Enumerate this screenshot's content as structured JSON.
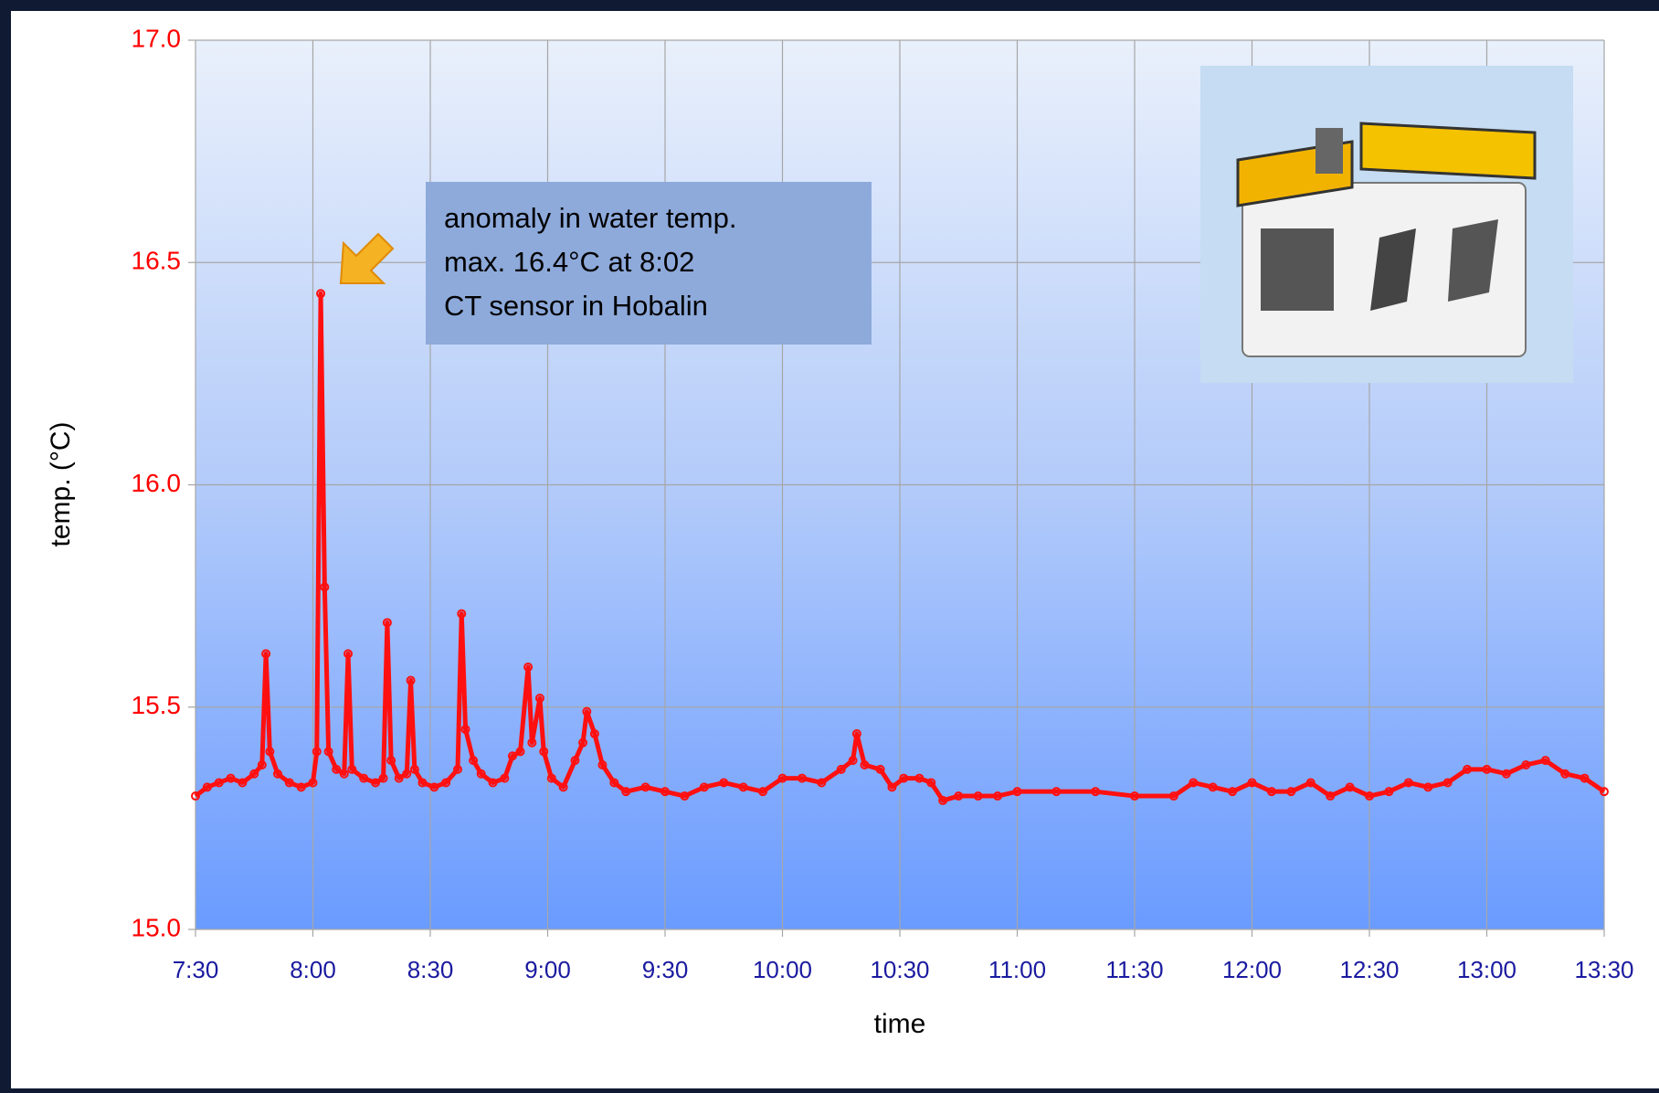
{
  "chart_data": {
    "type": "line",
    "y_label": "temp. (°C)",
    "x_label": "time",
    "annotation": [
      "anomaly in water temp.",
      "max. 16.4°C at 8:02",
      "CT sensor in Hobalin"
    ],
    "xlim": [
      "7:30",
      "13:30"
    ],
    "xticks": [
      "7:30",
      "8:00",
      "8:30",
      "9:00",
      "9:30",
      "10:00",
      "10:30",
      "11:00",
      "11:30",
      "12:00",
      "12:30",
      "13:00",
      "13:30"
    ],
    "ylim": [
      15,
      17
    ],
    "yticks": [
      {
        "value": 15,
        "label": "15.0"
      },
      15.5,
      {
        "value": 16,
        "label": "16.0"
      },
      16.5,
      {
        "value": 17,
        "label": "17.0"
      }
    ],
    "grid": true,
    "x": [
      "7:30",
      "7:33",
      "7:36",
      "7:39",
      "7:42",
      "7:45",
      "7:47",
      "7:48",
      "7:49",
      "7:51",
      "7:54",
      "7:57",
      "8:00",
      "8:01",
      "8:02",
      "8:03",
      "8:04",
      "8:06",
      "8:08",
      "8:09",
      "8:10",
      "8:13",
      "8:16",
      "8:18",
      "8:19",
      "8:20",
      "8:22",
      "8:24",
      "8:25",
      "8:26",
      "8:28",
      "8:31",
      "8:34",
      "8:37",
      "8:38",
      "8:39",
      "8:41",
      "8:43",
      "8:46",
      "8:49",
      "8:51",
      "8:53",
      "8:55",
      "8:56",
      "8:58",
      "8:59",
      "9:01",
      "9:04",
      "9:07",
      "9:09",
      "9:10",
      "9:12",
      "9:14",
      "9:17",
      "9:20",
      "9:25",
      "9:30",
      "9:35",
      "9:40",
      "9:45",
      "9:50",
      "9:55",
      "10:00",
      "10:05",
      "10:10",
      "10:15",
      "10:18",
      "10:19",
      "10:21",
      "10:25",
      "10:28",
      "10:31",
      "10:35",
      "10:38",
      "10:41",
      "10:45",
      "10:50",
      "10:55",
      "11:00",
      "11:10",
      "11:20",
      "11:30",
      "11:40",
      "11:45",
      "11:50",
      "11:55",
      "12:00",
      "12:05",
      "12:10",
      "12:15",
      "12:20",
      "12:25",
      "12:30",
      "12:35",
      "12:40",
      "12:45",
      "12:50",
      "12:55",
      "13:00",
      "13:05",
      "13:10",
      "13:15",
      "13:20",
      "13:25",
      "13:30"
    ],
    "series": [
      {
        "color": "#ff1010",
        "values": [
          15.3,
          15.32,
          15.33,
          15.34,
          15.33,
          15.35,
          15.37,
          15.62,
          15.4,
          15.35,
          15.33,
          15.32,
          15.33,
          15.4,
          16.43,
          15.77,
          15.4,
          15.36,
          15.35,
          15.62,
          15.36,
          15.34,
          15.33,
          15.34,
          15.69,
          15.38,
          15.34,
          15.35,
          15.56,
          15.36,
          15.33,
          15.32,
          15.33,
          15.36,
          15.71,
          15.45,
          15.38,
          15.35,
          15.33,
          15.34,
          15.39,
          15.4,
          15.59,
          15.42,
          15.52,
          15.4,
          15.34,
          15.32,
          15.38,
          15.42,
          15.49,
          15.44,
          15.37,
          15.33,
          15.31,
          15.32,
          15.31,
          15.3,
          15.32,
          15.33,
          15.32,
          15.31,
          15.34,
          15.34,
          15.33,
          15.36,
          15.38,
          15.44,
          15.37,
          15.36,
          15.32,
          15.34,
          15.34,
          15.33,
          15.29,
          15.3,
          15.3,
          15.3,
          15.31,
          15.31,
          15.31,
          15.3,
          15.3,
          15.33,
          15.32,
          15.31,
          15.33,
          15.31,
          15.31,
          15.33,
          15.3,
          15.32,
          15.3,
          15.31,
          15.33,
          15.32,
          15.33,
          15.36,
          15.36,
          15.35,
          15.37,
          15.38,
          15.35,
          15.34,
          15.31
        ]
      }
    ]
  }
}
